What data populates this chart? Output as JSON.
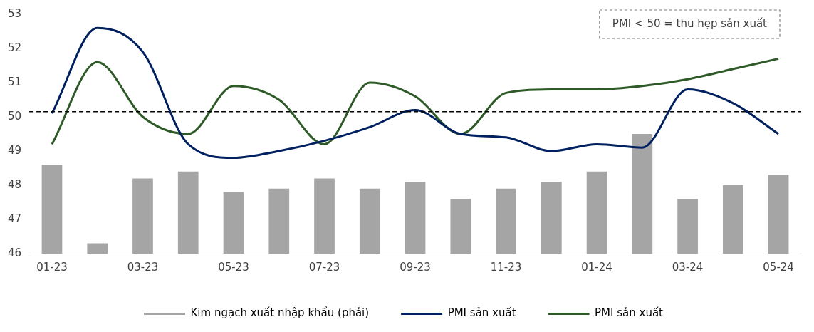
{
  "chart_data": {
    "type": "bar",
    "categories": [
      "01-23",
      null,
      "03-23",
      null,
      "05-23",
      null,
      "07-23",
      null,
      "09-23",
      null,
      "11-23",
      null,
      "01-24",
      null,
      "03-24",
      null,
      "05-24"
    ],
    "ylim": [
      46,
      53
    ],
    "yticks": [
      46,
      47,
      48,
      49,
      50,
      51,
      52,
      53
    ],
    "grid": false,
    "legend": "bottom",
    "series": [
      {
        "name": "Kim ngạch xuất nhập khẩu (phải)",
        "color": "#a5a5a5",
        "values": [
          48.6,
          46.3,
          48.2,
          48.4,
          47.8,
          47.9,
          48.2,
          47.9,
          48.1,
          47.6,
          47.9,
          48.1,
          48.4,
          49.5,
          47.6,
          48.0,
          48.3
        ]
      },
      {
        "name": "PMI sản xuất",
        "type": "line",
        "color": "#002060",
        "values": [
          50.1,
          52.6,
          51.9,
          49.2,
          48.8,
          49.0,
          49.3,
          49.7,
          50.2,
          49.5,
          49.4,
          49.0,
          49.2,
          49.1,
          50.8,
          50.4,
          49.5
        ]
      },
      {
        "name": "PMI sản xuất",
        "type": "line",
        "color": "#2e5a27",
        "values": [
          49.2,
          51.6,
          50.0,
          49.5,
          50.9,
          50.5,
          49.2,
          51.0,
          50.6,
          49.5,
          50.7,
          50.8,
          50.8,
          50.9,
          51.1,
          51.4,
          51.7
        ]
      }
    ],
    "ref_lines": [
      {
        "axis": "y",
        "value": 50.15,
        "color": "#000000",
        "line_style": "dashed"
      }
    ],
    "annotations": [
      "PMI < 50 = thu hẹp sản xuất"
    ],
    "marker": "none"
  }
}
